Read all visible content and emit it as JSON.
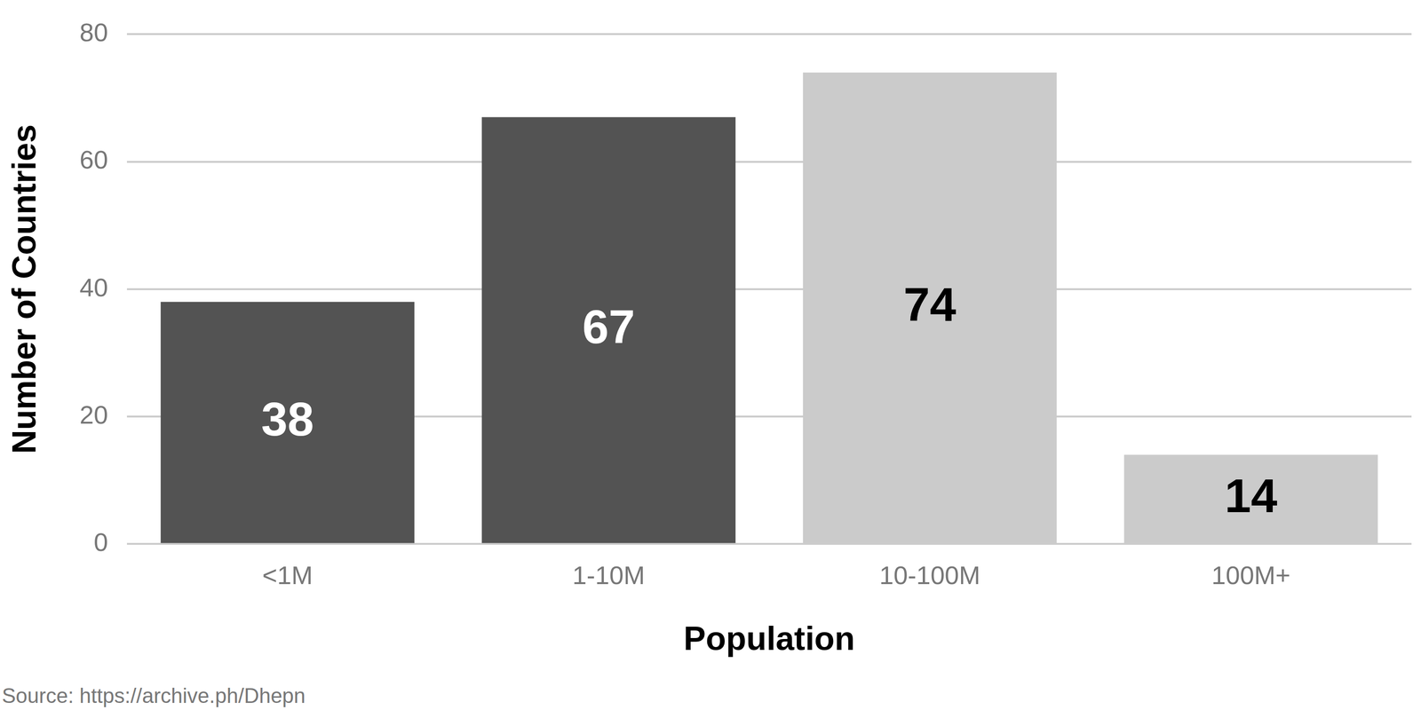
{
  "chart_data": {
    "type": "bar",
    "x_label": "Population",
    "y_label": "Number of Countries",
    "categories": [
      "<1M",
      "1-10M",
      "10-100M",
      "100M+"
    ],
    "values": [
      38,
      67,
      74,
      14
    ],
    "colors": [
      "#535353",
      "#535353",
      "#cbcbcb",
      "#cbcbcb"
    ],
    "ylim": [
      0,
      80
    ],
    "yticks": [
      0,
      20,
      40,
      60,
      80
    ],
    "grid": true,
    "data_labels": true,
    "source": "Source: https://archive.ph/Dhepn"
  }
}
